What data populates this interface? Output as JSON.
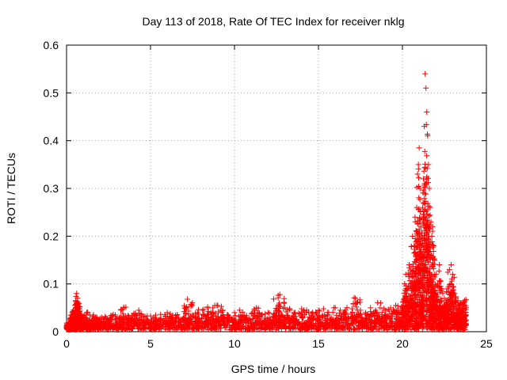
{
  "chart_data": {
    "type": "scatter",
    "title": "Day 113 of 2018, Rate Of TEC Index for receiver nklg",
    "xlabel": "GPS time / hours",
    "ylabel": "ROTI / TECUs",
    "xlim": [
      0,
      25
    ],
    "ylim": [
      0,
      0.6
    ],
    "xticks": [
      0,
      5,
      10,
      15,
      20,
      25
    ],
    "yticks": [
      0,
      0.1,
      0.2,
      0.3,
      0.4,
      0.5,
      0.6
    ],
    "xtick_labels": [
      "0",
      "5",
      "10",
      "15",
      "20",
      "25"
    ],
    "ytick_labels": [
      "0",
      "0.1",
      "0.2",
      "0.3",
      "0.4",
      "0.5",
      "0.6"
    ],
    "grid": true,
    "marker": "plus",
    "color": "#ff0000",
    "series": [
      {
        "points": [
          [
            0.0,
            0.01
          ],
          [
            0.1,
            0.015
          ],
          [
            0.2,
            0.025
          ],
          [
            0.3,
            0.035
          ],
          [
            0.4,
            0.045
          ],
          [
            0.5,
            0.055
          ],
          [
            0.55,
            0.065
          ],
          [
            0.6,
            0.08
          ],
          [
            0.65,
            0.07
          ],
          [
            0.7,
            0.06
          ],
          [
            0.8,
            0.045
          ],
          [
            0.9,
            0.035
          ],
          [
            1.0,
            0.03
          ],
          [
            1.2,
            0.04
          ],
          [
            1.4,
            0.025
          ],
          [
            1.6,
            0.035
          ],
          [
            1.8,
            0.03
          ],
          [
            2.0,
            0.028
          ],
          [
            2.3,
            0.032
          ],
          [
            2.6,
            0.027
          ],
          [
            2.9,
            0.035
          ],
          [
            3.2,
            0.03
          ],
          [
            3.4,
            0.05
          ],
          [
            3.7,
            0.032
          ],
          [
            4.0,
            0.038
          ],
          [
            4.3,
            0.045
          ],
          [
            4.6,
            0.03
          ],
          [
            5.0,
            0.033
          ],
          [
            5.3,
            0.028
          ],
          [
            5.6,
            0.036
          ],
          [
            6.0,
            0.04
          ],
          [
            6.3,
            0.03
          ],
          [
            6.6,
            0.035
          ],
          [
            7.0,
            0.042
          ],
          [
            7.2,
            0.068
          ],
          [
            7.5,
            0.035
          ],
          [
            7.8,
            0.04
          ],
          [
            8.1,
            0.045
          ],
          [
            8.4,
            0.05
          ],
          [
            8.7,
            0.04
          ],
          [
            9.0,
            0.055
          ],
          [
            9.3,
            0.045
          ],
          [
            9.6,
            0.035
          ],
          [
            10.0,
            0.04
          ],
          [
            10.3,
            0.045
          ],
          [
            10.6,
            0.03
          ],
          [
            11.0,
            0.038
          ],
          [
            11.3,
            0.05
          ],
          [
            11.6,
            0.035
          ],
          [
            12.0,
            0.04
          ],
          [
            12.3,
            0.032
          ],
          [
            12.6,
            0.076
          ],
          [
            12.7,
            0.078
          ],
          [
            13.0,
            0.05
          ],
          [
            13.3,
            0.045
          ],
          [
            13.6,
            0.04
          ],
          [
            14.0,
            0.048
          ],
          [
            14.3,
            0.045
          ],
          [
            14.6,
            0.038
          ],
          [
            15.0,
            0.045
          ],
          [
            15.3,
            0.048
          ],
          [
            15.6,
            0.04
          ],
          [
            16.0,
            0.05
          ],
          [
            16.3,
            0.045
          ],
          [
            16.6,
            0.04
          ],
          [
            17.0,
            0.048
          ],
          [
            17.2,
            0.07
          ],
          [
            17.5,
            0.045
          ],
          [
            17.8,
            0.04
          ],
          [
            18.1,
            0.05
          ],
          [
            18.4,
            0.045
          ],
          [
            18.7,
            0.06
          ],
          [
            19.0,
            0.045
          ],
          [
            19.3,
            0.05
          ],
          [
            19.6,
            0.055
          ],
          [
            19.8,
            0.04
          ],
          [
            20.0,
            0.05
          ],
          [
            20.1,
            0.08
          ],
          [
            20.2,
            0.12
          ],
          [
            20.3,
            0.06
          ],
          [
            20.4,
            0.14
          ],
          [
            20.5,
            0.1
          ],
          [
            20.6,
            0.2
          ],
          [
            20.7,
            0.18
          ],
          [
            20.75,
            0.24
          ],
          [
            20.8,
            0.16
          ],
          [
            20.85,
            0.26
          ],
          [
            20.9,
            0.33
          ],
          [
            20.95,
            0.35
          ],
          [
            21.0,
            0.385
          ],
          [
            21.05,
            0.3
          ],
          [
            21.1,
            0.22
          ],
          [
            21.15,
            0.18
          ],
          [
            21.2,
            0.26
          ],
          [
            21.25,
            0.32
          ],
          [
            21.3,
            0.43
          ],
          [
            21.35,
            0.54
          ],
          [
            21.4,
            0.51
          ],
          [
            21.45,
            0.46
          ],
          [
            21.5,
            0.41
          ],
          [
            21.55,
            0.35
          ],
          [
            21.6,
            0.3
          ],
          [
            21.65,
            0.26
          ],
          [
            21.7,
            0.23
          ],
          [
            21.75,
            0.2
          ],
          [
            21.8,
            0.22
          ],
          [
            21.85,
            0.18
          ],
          [
            21.9,
            0.15
          ],
          [
            22.0,
            0.12
          ],
          [
            22.1,
            0.1
          ],
          [
            22.2,
            0.14
          ],
          [
            22.3,
            0.09
          ],
          [
            22.4,
            0.08
          ],
          [
            22.5,
            0.07
          ],
          [
            22.6,
            0.06
          ],
          [
            22.7,
            0.09
          ],
          [
            22.8,
            0.13
          ],
          [
            22.9,
            0.14
          ],
          [
            23.0,
            0.12
          ],
          [
            23.1,
            0.08
          ],
          [
            23.2,
            0.06
          ],
          [
            23.3,
            0.065
          ],
          [
            23.4,
            0.05
          ],
          [
            23.5,
            0.06
          ],
          [
            23.6,
            0.055
          ],
          [
            23.7,
            0.065
          ],
          [
            23.8,
            0.05
          ]
        ]
      }
    ]
  }
}
